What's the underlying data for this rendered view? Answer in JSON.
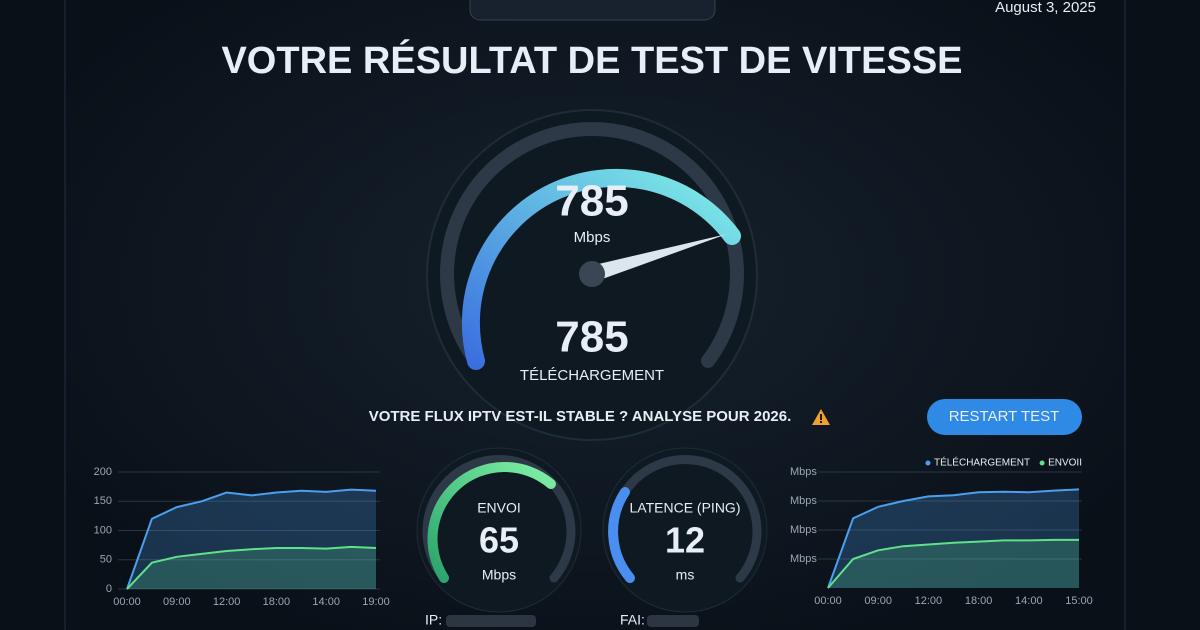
{
  "header": {
    "date": "August 3, 2025",
    "title": "VOTRE RÉSULTAT DE TEST DE VITESSE"
  },
  "main_gauge": {
    "value": "785",
    "unit": "Mbps",
    "value_2": "785",
    "label": "TÉLÉCHARGEMENT"
  },
  "banner": {
    "text": "VOTRE FLUX IPTV EST-IL STABLE ? ANALYSE POUR 2026.",
    "button": "RESTART TEST"
  },
  "upload_gauge": {
    "label": "ENVOI",
    "value": "65",
    "unit": "Mbps"
  },
  "ping_gauge": {
    "label": "LATENCE (PING)",
    "value": "12",
    "unit": "ms"
  },
  "footer": {
    "ip_label": "IP:",
    "isp_label": "FAI:"
  },
  "chart_data": [
    {
      "type": "line",
      "categories": [
        "00:00",
        null,
        "09:00",
        null,
        "12:00",
        null,
        "18:00",
        null,
        "14:00",
        null,
        "19:00"
      ],
      "series": [
        {
          "color": "#4a9ff0",
          "values": [
            0,
            120,
            140,
            150,
            165,
            160,
            165,
            168,
            166,
            170,
            168
          ]
        },
        {
          "color": "#5fe08a",
          "values": [
            0,
            45,
            55,
            60,
            65,
            68,
            70,
            70,
            69,
            72,
            70
          ]
        }
      ],
      "ylim": [
        0,
        200
      ],
      "yticks": [
        0,
        50,
        100,
        150,
        200
      ],
      "grid": true
    },
    {
      "type": "line",
      "categories": [
        "00:00",
        null,
        "09:00",
        null,
        "12:00",
        null,
        "18:00",
        null,
        "14:00",
        null,
        "15:00"
      ],
      "series": [
        {
          "name": "TÉLÉCHARGEMENT",
          "color": "#4a9ff0",
          "values": [
            0,
            120,
            140,
            150,
            158,
            160,
            165,
            166,
            165,
            168,
            170
          ]
        },
        {
          "name": "ENVOII",
          "color": "#5fe08a",
          "values": [
            0,
            50,
            65,
            72,
            75,
            78,
            80,
            82,
            82,
            83,
            83
          ]
        }
      ],
      "ylim": [
        0,
        200
      ],
      "yticks": [
        {
          "value": 50,
          "label": "Mbps"
        },
        {
          "value": 100,
          "label": "Mbps"
        },
        {
          "value": 150,
          "label": "Mbps"
        },
        {
          "value": 200,
          "label": "Mbps"
        }
      ],
      "grid": true,
      "legend": "top-right"
    }
  ]
}
